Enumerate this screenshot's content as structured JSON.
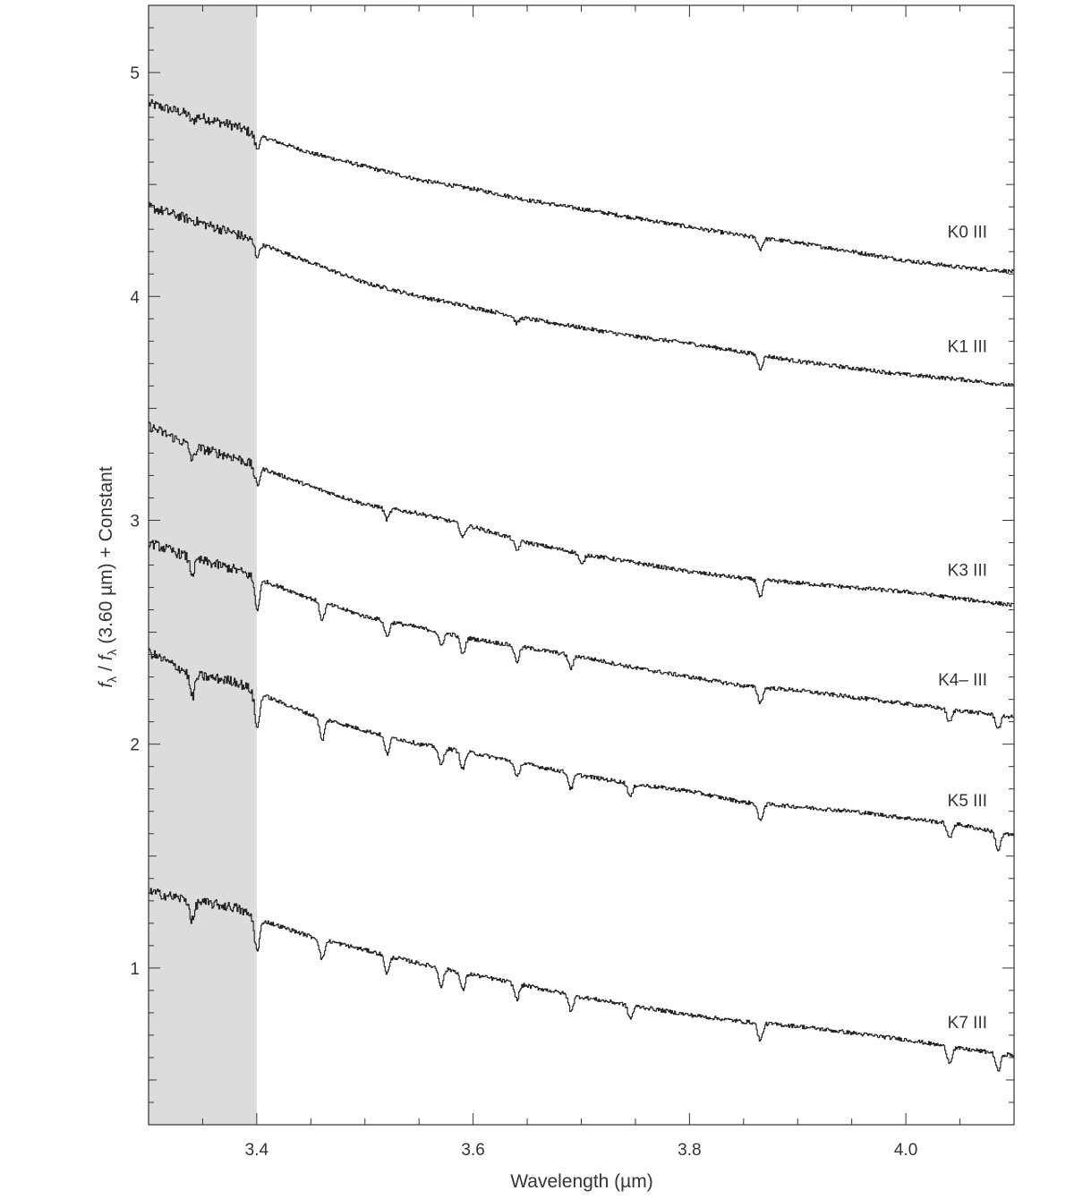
{
  "chart_data": {
    "type": "line",
    "title": "",
    "xlabel": "Wavelength (µm)",
    "ylabel": "f_λ / f_λ (3.60 µm) + Constant",
    "ylabel_parts": {
      "f1": "f",
      "sub1": "λ",
      "slash": " / ",
      "f2": "f",
      "sub2": "λ",
      "rest": " (3.60 µm) + Constant"
    },
    "xlim": [
      3.3,
      4.1
    ],
    "ylim": [
      0.3,
      5.3
    ],
    "x_ticks": [
      3.4,
      3.6,
      3.8,
      4.0
    ],
    "x_tick_labels": [
      "3.4",
      "3.6",
      "3.8",
      "4.0"
    ],
    "y_ticks": [
      1,
      2,
      3,
      4,
      5
    ],
    "y_tick_labels": [
      "1",
      "2",
      "3",
      "4",
      "5"
    ],
    "shaded_region": {
      "x": [
        3.3,
        3.4
      ],
      "color": "#dcdcde"
    },
    "grid": false,
    "legend": "none",
    "series": [
      {
        "name": "K0 III",
        "label": "K0 III",
        "label_y": 4.29,
        "x": [
          3.3,
          3.34,
          3.38,
          3.4,
          3.45,
          3.5,
          3.55,
          3.6,
          3.65,
          3.7,
          3.75,
          3.8,
          3.85,
          3.9,
          3.95,
          4.0,
          4.05,
          4.1
        ],
        "y": [
          4.86,
          4.81,
          4.76,
          4.72,
          4.64,
          4.58,
          4.52,
          4.48,
          4.43,
          4.39,
          4.35,
          4.31,
          4.27,
          4.24,
          4.2,
          4.16,
          4.13,
          4.11
        ],
        "absorption": [
          [
            3.34,
            0.03
          ],
          [
            3.4,
            0.06
          ],
          [
            3.865,
            0.05
          ]
        ]
      },
      {
        "name": "K1 III",
        "label": "K1 III",
        "label_y": 3.78,
        "x": [
          3.3,
          3.34,
          3.38,
          3.4,
          3.45,
          3.5,
          3.55,
          3.6,
          3.65,
          3.7,
          3.75,
          3.8,
          3.85,
          3.9,
          3.95,
          4.0,
          4.05,
          4.1
        ],
        "y": [
          4.4,
          4.34,
          4.28,
          4.24,
          4.15,
          4.06,
          4.0,
          3.95,
          3.9,
          3.86,
          3.82,
          3.79,
          3.75,
          3.71,
          3.68,
          3.65,
          3.63,
          3.6
        ],
        "absorption": [
          [
            3.4,
            0.06
          ],
          [
            3.64,
            0.03
          ],
          [
            3.865,
            0.06
          ]
        ]
      },
      {
        "name": "K3 III",
        "label": "K3 III",
        "label_y": 2.78,
        "x": [
          3.3,
          3.34,
          3.38,
          3.4,
          3.45,
          3.5,
          3.55,
          3.6,
          3.65,
          3.7,
          3.75,
          3.8,
          3.85,
          3.9,
          3.95,
          4.0,
          4.05,
          4.1
        ],
        "y": [
          3.42,
          3.33,
          3.28,
          3.24,
          3.15,
          3.07,
          3.03,
          2.97,
          2.9,
          2.85,
          2.81,
          2.77,
          2.74,
          2.72,
          2.7,
          2.68,
          2.65,
          2.62
        ],
        "absorption": [
          [
            3.34,
            0.06
          ],
          [
            3.4,
            0.09
          ],
          [
            3.52,
            0.05
          ],
          [
            3.59,
            0.06
          ],
          [
            3.64,
            0.05
          ],
          [
            3.7,
            0.05
          ],
          [
            3.865,
            0.08
          ]
        ]
      },
      {
        "name": "K4– III",
        "label": "K4– III",
        "label_y": 2.29,
        "x": [
          3.3,
          3.34,
          3.38,
          3.4,
          3.45,
          3.5,
          3.55,
          3.6,
          3.65,
          3.7,
          3.75,
          3.8,
          3.85,
          3.9,
          3.95,
          4.0,
          4.05,
          4.1
        ],
        "y": [
          2.9,
          2.83,
          2.78,
          2.74,
          2.65,
          2.57,
          2.52,
          2.47,
          2.43,
          2.39,
          2.34,
          2.3,
          2.26,
          2.24,
          2.21,
          2.18,
          2.15,
          2.12
        ],
        "absorption": [
          [
            3.34,
            0.07
          ],
          [
            3.4,
            0.14
          ],
          [
            3.46,
            0.08
          ],
          [
            3.52,
            0.07
          ],
          [
            3.57,
            0.06
          ],
          [
            3.59,
            0.08
          ],
          [
            3.64,
            0.07
          ],
          [
            3.69,
            0.06
          ],
          [
            3.865,
            0.07
          ],
          [
            4.04,
            0.06
          ],
          [
            4.085,
            0.06
          ]
        ]
      },
      {
        "name": "K5 III",
        "label": "K5 III",
        "label_y": 1.75,
        "x": [
          3.3,
          3.34,
          3.38,
          3.4,
          3.45,
          3.5,
          3.55,
          3.6,
          3.65,
          3.7,
          3.75,
          3.8,
          3.85,
          3.9,
          3.95,
          4.0,
          4.05,
          4.1
        ],
        "y": [
          2.41,
          2.31,
          2.28,
          2.23,
          2.13,
          2.06,
          2.0,
          1.96,
          1.91,
          1.86,
          1.82,
          1.79,
          1.74,
          1.72,
          1.7,
          1.67,
          1.64,
          1.59
        ],
        "absorption": [
          [
            3.34,
            0.1
          ],
          [
            3.4,
            0.16
          ],
          [
            3.46,
            0.1
          ],
          [
            3.52,
            0.08
          ],
          [
            3.57,
            0.08
          ],
          [
            3.59,
            0.08
          ],
          [
            3.64,
            0.07
          ],
          [
            3.69,
            0.07
          ],
          [
            3.745,
            0.06
          ],
          [
            3.865,
            0.08
          ],
          [
            4.04,
            0.07
          ],
          [
            4.085,
            0.08
          ]
        ]
      },
      {
        "name": "K7 III",
        "label": "K7 III",
        "label_y": 0.76,
        "x": [
          3.3,
          3.34,
          3.38,
          3.4,
          3.45,
          3.5,
          3.55,
          3.6,
          3.65,
          3.7,
          3.75,
          3.8,
          3.85,
          3.9,
          3.95,
          4.0,
          4.05,
          4.1
        ],
        "y": [
          1.34,
          1.3,
          1.27,
          1.22,
          1.14,
          1.08,
          1.02,
          0.97,
          0.92,
          0.87,
          0.83,
          0.79,
          0.76,
          0.74,
          0.71,
          0.68,
          0.64,
          0.61
        ],
        "absorption": [
          [
            3.34,
            0.09
          ],
          [
            3.4,
            0.15
          ],
          [
            3.46,
            0.09
          ],
          [
            3.52,
            0.08
          ],
          [
            3.57,
            0.08
          ],
          [
            3.59,
            0.08
          ],
          [
            3.64,
            0.07
          ],
          [
            3.69,
            0.07
          ],
          [
            3.745,
            0.06
          ],
          [
            3.865,
            0.08
          ],
          [
            4.04,
            0.07
          ],
          [
            4.085,
            0.08
          ]
        ]
      }
    ]
  }
}
